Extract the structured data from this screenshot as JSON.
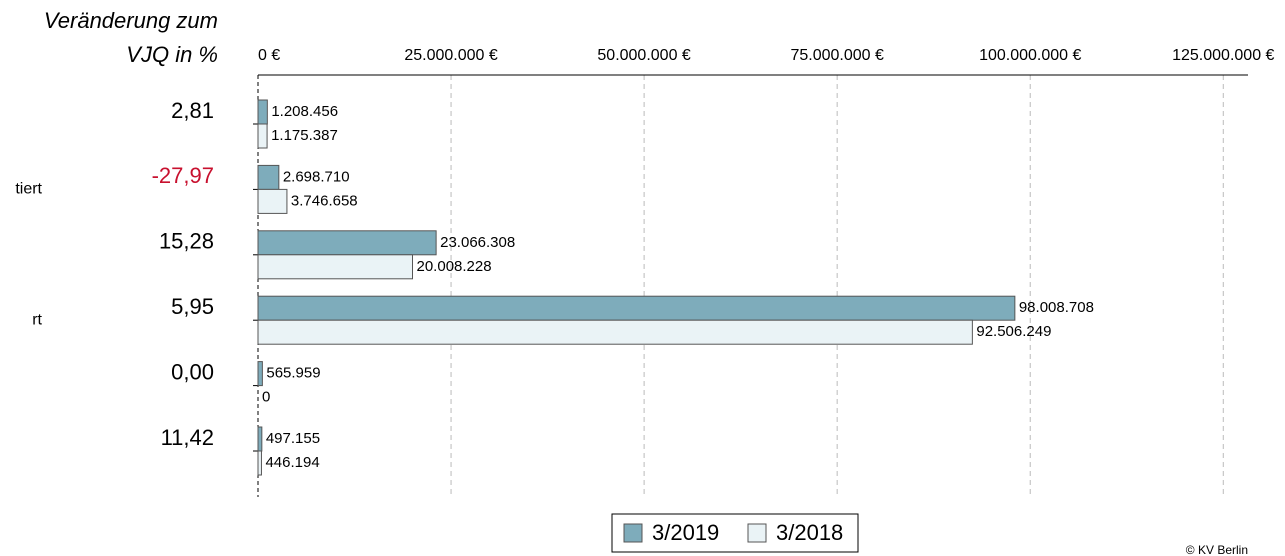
{
  "chart_data": {
    "type": "bar",
    "orientation": "horizontal",
    "change_title": [
      "Veränderung zum",
      "VJQ in %"
    ],
    "categories": [
      null,
      "tiert",
      null,
      "rt",
      null,
      null
    ],
    "change": {
      "values": [
        2.81,
        -27.97,
        15.28,
        5.95,
        0.0,
        11.42
      ],
      "value_labels": [
        "2,81",
        "-27,97",
        "15,28",
        "5,95",
        "0,00",
        "11,42"
      ],
      "color": "#000000",
      "negative_color": "#c8102e"
    },
    "series": [
      {
        "name": "3/2019",
        "color": "#7eacbb",
        "values": [
          1208456,
          2698710,
          23066308,
          98008708,
          565959,
          497155
        ],
        "value_labels": [
          "1.208.456",
          "2.698.710",
          "23.066.308",
          "98.008.708",
          "565.959",
          "497.155"
        ]
      },
      {
        "name": "3/2018",
        "color": "#eaf3f6",
        "values": [
          1175387,
          3746658,
          20008228,
          92506249,
          0,
          446194
        ],
        "value_labels": [
          "1.175.387",
          "3.746.658",
          "20.008.228",
          "92.506.249",
          "0",
          "446.194"
        ]
      }
    ],
    "xlim": [
      0,
      128200000
    ],
    "xticks": [
      {
        "value": 0,
        "label": "0 €"
      },
      {
        "value": 25000000,
        "label": "25.000.000 €"
      },
      {
        "value": 50000000,
        "label": "50.000.000 €"
      },
      {
        "value": 75000000,
        "label": "75.000.000 €"
      },
      {
        "value": 100000000,
        "label": "100.000.000 €"
      },
      {
        "value": 125000000,
        "label": "125.000.000 €"
      }
    ],
    "grid": true,
    "legend": "bottom",
    "credit": "© KV Berlin"
  }
}
